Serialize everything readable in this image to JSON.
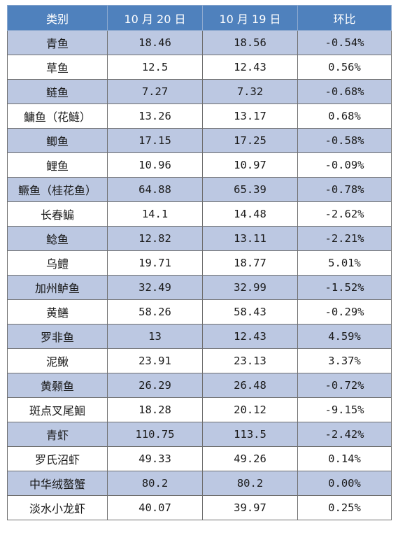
{
  "table": {
    "headers": [
      "类别",
      "10 月 20 日",
      "10 月 19 日",
      "环比"
    ],
    "colors": {
      "header_bg": "#4f81bd",
      "shaded_row_bg": "#bcc8e2",
      "plain_row_bg": "#ffffff"
    },
    "rows": [
      {
        "name": "青鱼",
        "oct20": "18.46",
        "oct19": "18.56",
        "change": "-0.54%"
      },
      {
        "name": "草鱼",
        "oct20": "12.5",
        "oct19": "12.43",
        "change": "0.56%"
      },
      {
        "name": "鲢鱼",
        "oct20": "7.27",
        "oct19": "7.32",
        "change": "-0.68%"
      },
      {
        "name": "鳙鱼（花鲢）",
        "oct20": "13.26",
        "oct19": "13.17",
        "change": "0.68%"
      },
      {
        "name": "鲫鱼",
        "oct20": "17.15",
        "oct19": "17.25",
        "change": "-0.58%"
      },
      {
        "name": "鲤鱼",
        "oct20": "10.96",
        "oct19": "10.97",
        "change": "-0.09%"
      },
      {
        "name": "鳜鱼（桂花鱼）",
        "oct20": "64.88",
        "oct19": "65.39",
        "change": "-0.78%"
      },
      {
        "name": "长春鳊",
        "oct20": "14.1",
        "oct19": "14.48",
        "change": "-2.62%"
      },
      {
        "name": "鲶鱼",
        "oct20": "12.82",
        "oct19": "13.11",
        "change": "-2.21%"
      },
      {
        "name": "乌鳢",
        "oct20": "19.71",
        "oct19": "18.77",
        "change": "5.01%"
      },
      {
        "name": "加州鲈鱼",
        "oct20": "32.49",
        "oct19": "32.99",
        "change": "-1.52%"
      },
      {
        "name": "黄鳝",
        "oct20": "58.26",
        "oct19": "58.43",
        "change": "-0.29%"
      },
      {
        "name": "罗非鱼",
        "oct20": "13",
        "oct19": "12.43",
        "change": "4.59%"
      },
      {
        "name": "泥鳅",
        "oct20": "23.91",
        "oct19": "23.13",
        "change": "3.37%"
      },
      {
        "name": "黄颡鱼",
        "oct20": "26.29",
        "oct19": "26.48",
        "change": "-0.72%"
      },
      {
        "name": "斑点叉尾鮰",
        "oct20": "18.28",
        "oct19": "20.12",
        "change": "-9.15%"
      },
      {
        "name": "青虾",
        "oct20": "110.75",
        "oct19": "113.5",
        "change": "-2.42%"
      },
      {
        "name": "罗氏沼虾",
        "oct20": "49.33",
        "oct19": "49.26",
        "change": "0.14%"
      },
      {
        "name": "中华绒螯蟹",
        "oct20": "80.2",
        "oct19": "80.2",
        "change": "0.00%"
      },
      {
        "name": "淡水小龙虾",
        "oct20": "40.07",
        "oct19": "39.97",
        "change": "0.25%"
      }
    ]
  }
}
